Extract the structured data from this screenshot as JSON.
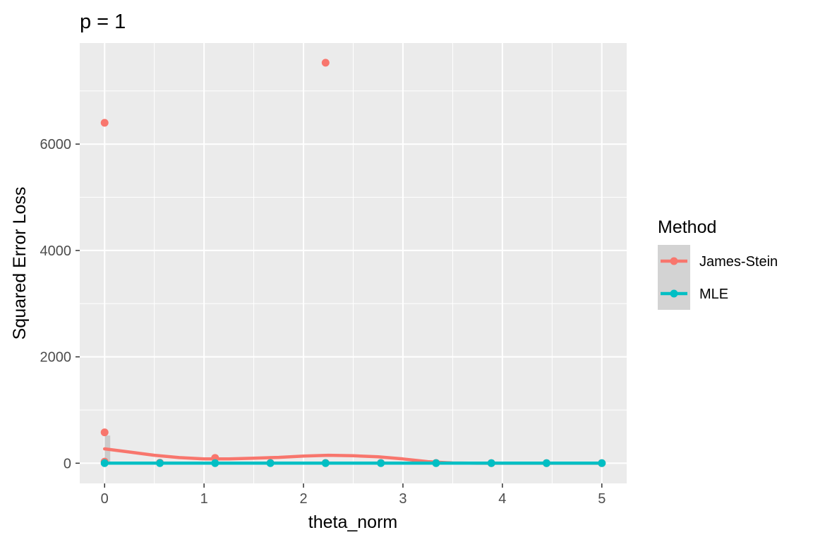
{
  "chart_data": {
    "type": "scatter",
    "title": "p = 1",
    "xlabel": "theta_norm",
    "ylabel": "Squared Error Loss",
    "xlim": [
      -0.25,
      5.25
    ],
    "ylim": [
      -380,
      7900
    ],
    "x_ticks": [
      0,
      1,
      2,
      3,
      4,
      5
    ],
    "x_tick_labels": [
      "0",
      "1",
      "2",
      "3",
      "4",
      "5"
    ],
    "y_ticks": [
      0,
      2000,
      4000,
      6000
    ],
    "y_tick_labels": [
      "0",
      "2000",
      "4000",
      "6000"
    ],
    "grid": true,
    "legend": {
      "title": "Method",
      "position": "right"
    },
    "series": [
      {
        "name": "James-Stein",
        "color": "#F8766D",
        "points": [
          {
            "x": 0,
            "y": 6400
          },
          {
            "x": 0,
            "y": 580
          },
          {
            "x": 0,
            "y": 30
          },
          {
            "x": 0.556,
            "y": 10
          },
          {
            "x": 1.111,
            "y": 100
          },
          {
            "x": 1.667,
            "y": 5
          },
          {
            "x": 2.222,
            "y": 7530
          },
          {
            "x": 2.222,
            "y": 5
          },
          {
            "x": 2.778,
            "y": 5
          },
          {
            "x": 3.333,
            "y": 5
          },
          {
            "x": 3.889,
            "y": 2
          },
          {
            "x": 4.444,
            "y": 2
          },
          {
            "x": 5,
            "y": 2
          }
        ],
        "smooth": [
          {
            "x": 0,
            "y": 270
          },
          {
            "x": 0.25,
            "y": 210
          },
          {
            "x": 0.5,
            "y": 150
          },
          {
            "x": 0.75,
            "y": 105
          },
          {
            "x": 1.0,
            "y": 80
          },
          {
            "x": 1.25,
            "y": 80
          },
          {
            "x": 1.5,
            "y": 95
          },
          {
            "x": 1.75,
            "y": 110
          },
          {
            "x": 2.0,
            "y": 135
          },
          {
            "x": 2.25,
            "y": 150
          },
          {
            "x": 2.5,
            "y": 140
          },
          {
            "x": 2.75,
            "y": 120
          },
          {
            "x": 3.0,
            "y": 80
          },
          {
            "x": 3.25,
            "y": 30
          },
          {
            "x": 3.5,
            "y": 5
          },
          {
            "x": 3.75,
            "y": 0
          },
          {
            "x": 4.0,
            "y": 0
          },
          {
            "x": 4.5,
            "y": 0
          },
          {
            "x": 5.0,
            "y": 0
          }
        ]
      },
      {
        "name": "MLE",
        "color": "#00BFC4",
        "points": [
          {
            "x": 0,
            "y": 1
          },
          {
            "x": 0.556,
            "y": 1
          },
          {
            "x": 1.111,
            "y": 1
          },
          {
            "x": 1.667,
            "y": 1
          },
          {
            "x": 2.222,
            "y": 1
          },
          {
            "x": 2.778,
            "y": 1
          },
          {
            "x": 3.333,
            "y": 1
          },
          {
            "x": 3.889,
            "y": 1
          },
          {
            "x": 4.444,
            "y": 1
          },
          {
            "x": 5,
            "y": 1
          }
        ],
        "smooth": [
          {
            "x": 0,
            "y": 1
          },
          {
            "x": 1,
            "y": 1
          },
          {
            "x": 2,
            "y": 1
          },
          {
            "x": 3,
            "y": 1
          },
          {
            "x": 4,
            "y": 1
          },
          {
            "x": 5,
            "y": 1
          }
        ]
      }
    ]
  },
  "colors": {
    "panel_background": "#EBEBEB",
    "grid_major": "#FFFFFF",
    "ribbon": "#BEBEBE",
    "legend_key_background": "#D3D3D3",
    "tick_label": "#4D4D4D"
  }
}
